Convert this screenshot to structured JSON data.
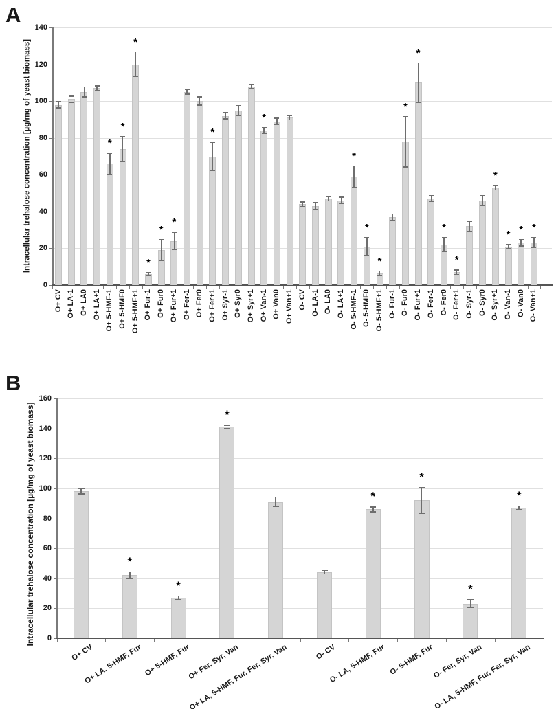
{
  "figure": {
    "background": "#ffffff"
  },
  "chart_data": [
    {
      "type": "bar",
      "panel": "A",
      "title": "",
      "xlabel": "",
      "ylabel": "Intracellular trehalose concentration [µg/mg of yeast biomass]",
      "ylim": [
        0,
        140
      ],
      "yticks": [
        0,
        20,
        40,
        60,
        80,
        100,
        120,
        140
      ],
      "grid": true,
      "legend_position": "none",
      "bar_color": "#d5d5d5",
      "error_bar_color": "#6e6e6e",
      "significance_marker": "*",
      "categories": [
        "O+ CV",
        "O+ LA-1",
        "O+ LA0",
        "O+ LA+1",
        "O+ 5-HMF-1",
        "O+ 5-HMF0",
        "O+ 5-HMF+1",
        "O+ Fur-1",
        "O+ Fur0",
        "O+ Fur+1",
        "O+ Fer-1",
        "O+ Fer0",
        "O+ Fer+1",
        "O+ Syr-1",
        "O+ Syr0",
        "O+ Syr+1",
        "O+ Van-1",
        "O+ Van0",
        "O+ Van+1",
        "O- CV",
        "O- LA-1",
        "O- LA0",
        "O- LA+1",
        "O- 5-HMF-1",
        "O- 5-HMF0",
        "O- 5-HMF+1",
        "O- Fur-1",
        "O- Fur0",
        "O- Fur+1",
        "O- Fer-1",
        "O- Fer0",
        "O- Fer+1",
        "O- Syr-1",
        "O- Syr0",
        "O- Syr+1",
        "O- Van-1",
        "O- Van0",
        "O- Van+1"
      ],
      "values": [
        98,
        101,
        105,
        107,
        66,
        74,
        120,
        6,
        19,
        24,
        105,
        100,
        70,
        92,
        95,
        108,
        84,
        89,
        91,
        44,
        43,
        47,
        46,
        59,
        21,
        6.5,
        37,
        78,
        110,
        47,
        22,
        7,
        32,
        46,
        53,
        21,
        23,
        23
      ],
      "errors": [
        2,
        2,
        3,
        1.5,
        6,
        7,
        7,
        1,
        6,
        5,
        1.5,
        2.5,
        8,
        2,
        3,
        1.5,
        2,
        2,
        1.5,
        1.5,
        2,
        1.5,
        2,
        6,
        5,
        1.5,
        2,
        14,
        11,
        2,
        4,
        1.5,
        3,
        3,
        1.5,
        1.5,
        2,
        3
      ],
      "significant": [
        false,
        false,
        false,
        false,
        true,
        true,
        true,
        true,
        true,
        true,
        false,
        false,
        true,
        false,
        false,
        false,
        true,
        false,
        false,
        false,
        false,
        false,
        false,
        true,
        true,
        true,
        false,
        true,
        true,
        false,
        true,
        true,
        false,
        false,
        true,
        true,
        true,
        true
      ]
    },
    {
      "type": "bar",
      "panel": "B",
      "title": "",
      "xlabel": "",
      "ylabel": "Intracellular trehalose concentration [µg/mg of yeast biomass]",
      "ylim": [
        0,
        160
      ],
      "yticks": [
        0,
        20,
        40,
        60,
        80,
        100,
        120,
        140,
        160
      ],
      "grid": true,
      "legend_position": "none",
      "bar_color": "#d5d5d5",
      "error_bar_color": "#6e6e6e",
      "significance_marker": "*",
      "categories": [
        "O+ CV",
        "O+ LA, 5-HMF, Fur",
        "O+ 5-HMF, Fur",
        "O+ Fer, Syr, Van",
        "O+ LA, 5-HMF, Fur, Fer, Syr, Van",
        "O- CV",
        "O- LA, 5-HMF, Fur",
        "O- 5-HMF, Fur",
        "O- Fer, Syr, Van",
        "O- LA, 5-HMF, Fur, Fer, Syr, Van"
      ],
      "values": [
        98,
        42,
        27,
        141,
        91,
        44,
        86,
        92,
        23,
        87
      ],
      "errors": [
        2,
        2.5,
        1.5,
        1.5,
        3.5,
        1.5,
        2,
        9,
        3,
        1.5
      ],
      "significant": [
        false,
        true,
        true,
        true,
        false,
        false,
        true,
        true,
        true,
        true
      ]
    }
  ]
}
